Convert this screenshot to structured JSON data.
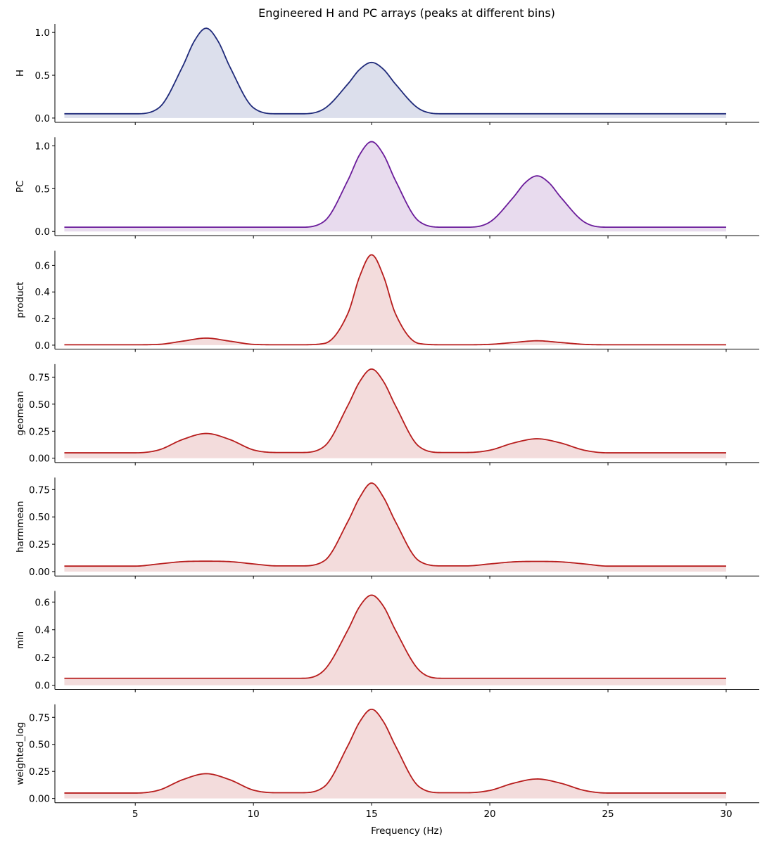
{
  "figure": {
    "title": "Engineered H and PC arrays (peaks at different bins)",
    "xlabel": "Frequency (Hz)"
  },
  "chart_data": [
    {
      "type": "area",
      "ylabel": "H",
      "color": "#1f2a7a",
      "fill": "#dcdfec",
      "xlim": [
        1.6,
        31.4
      ],
      "ylim": [
        -0.05,
        1.1
      ],
      "yticks": [
        0.0,
        0.5,
        1.0
      ],
      "ytick_labels": [
        "0.0",
        "0.5",
        "1.0"
      ],
      "x": [
        2,
        5,
        6,
        7,
        7.5,
        8,
        8.5,
        9,
        10,
        11,
        11.5,
        12,
        13,
        14,
        14.5,
        15,
        15.5,
        16,
        17,
        18,
        19,
        30
      ],
      "y": [
        0.05,
        0.05,
        0.12,
        0.6,
        0.9,
        1.05,
        0.9,
        0.6,
        0.12,
        0.05,
        0.05,
        0.05,
        0.11,
        0.4,
        0.57,
        0.65,
        0.57,
        0.4,
        0.11,
        0.05,
        0.05,
        0.05
      ]
    },
    {
      "type": "area",
      "ylabel": "PC",
      "color": "#6a1b9a",
      "fill": "#e8dbee",
      "xlim": [
        1.6,
        31.4
      ],
      "ylim": [
        -0.05,
        1.1
      ],
      "yticks": [
        0.0,
        0.5,
        1.0
      ],
      "ytick_labels": [
        "0.0",
        "0.5",
        "1.0"
      ],
      "x": [
        2,
        12,
        13,
        14,
        14.5,
        15,
        15.5,
        16,
        17,
        18,
        18.5,
        19,
        20,
        21,
        21.5,
        22,
        22.5,
        23,
        24,
        25,
        30
      ],
      "y": [
        0.05,
        0.05,
        0.12,
        0.6,
        0.9,
        1.05,
        0.9,
        0.6,
        0.12,
        0.05,
        0.05,
        0.05,
        0.11,
        0.4,
        0.57,
        0.65,
        0.57,
        0.4,
        0.11,
        0.05,
        0.05
      ]
    },
    {
      "type": "area",
      "ylabel": "product",
      "color": "#b71c1c",
      "fill": "#f3dcdc",
      "xlim": [
        1.6,
        31.4
      ],
      "ylim": [
        -0.03,
        0.71
      ],
      "yticks": [
        0.0,
        0.2,
        0.4,
        0.6
      ],
      "ytick_labels": [
        "0.0",
        "0.2",
        "0.4",
        "0.6"
      ],
      "x": [
        2,
        5,
        6,
        7,
        8,
        9,
        10,
        11,
        12,
        13,
        14,
        14.5,
        15,
        15.5,
        16,
        17,
        18,
        19,
        20,
        21,
        22,
        23,
        24,
        25,
        30
      ],
      "y": [
        0.003,
        0.003,
        0.006,
        0.03,
        0.053,
        0.03,
        0.006,
        0.003,
        0.003,
        0.013,
        0.24,
        0.52,
        0.68,
        0.52,
        0.24,
        0.013,
        0.003,
        0.003,
        0.006,
        0.02,
        0.033,
        0.02,
        0.006,
        0.003,
        0.003
      ]
    },
    {
      "type": "area",
      "ylabel": "geomean",
      "color": "#b71c1c",
      "fill": "#f3dcdc",
      "xlim": [
        1.6,
        31.4
      ],
      "ylim": [
        -0.04,
        0.87
      ],
      "yticks": [
        0.0,
        0.25,
        0.5,
        0.75
      ],
      "ytick_labels": [
        "0.00",
        "0.25",
        "0.50",
        "0.75"
      ],
      "x": [
        2,
        5,
        6,
        7,
        8,
        9,
        10,
        11,
        12,
        13,
        14,
        14.5,
        15,
        15.5,
        16,
        17,
        18,
        19,
        20,
        21,
        22,
        23,
        24,
        25,
        30
      ],
      "y": [
        0.05,
        0.05,
        0.077,
        0.173,
        0.229,
        0.173,
        0.077,
        0.053,
        0.053,
        0.11,
        0.49,
        0.71,
        0.825,
        0.71,
        0.49,
        0.11,
        0.053,
        0.053,
        0.074,
        0.141,
        0.18,
        0.141,
        0.074,
        0.05,
        0.05
      ]
    },
    {
      "type": "area",
      "ylabel": "harmmean",
      "color": "#b71c1c",
      "fill": "#f3dcdc",
      "xlim": [
        1.6,
        31.4
      ],
      "ylim": [
        -0.04,
        0.86
      ],
      "yticks": [
        0.0,
        0.25,
        0.5,
        0.75
      ],
      "ytick_labels": [
        "0.00",
        "0.25",
        "0.50",
        "0.75"
      ],
      "x": [
        2,
        5,
        6,
        7,
        8,
        9,
        10,
        11,
        12,
        13,
        14,
        14.5,
        15,
        15.5,
        16,
        17,
        18,
        19,
        20,
        21,
        22,
        23,
        24,
        25,
        30
      ],
      "y": [
        0.05,
        0.05,
        0.07,
        0.091,
        0.095,
        0.091,
        0.07,
        0.052,
        0.052,
        0.099,
        0.46,
        0.68,
        0.81,
        0.68,
        0.46,
        0.099,
        0.052,
        0.052,
        0.07,
        0.089,
        0.093,
        0.089,
        0.07,
        0.05,
        0.05
      ]
    },
    {
      "type": "area",
      "ylabel": "min",
      "color": "#b71c1c",
      "fill": "#f3dcdc",
      "xlim": [
        1.6,
        31.4
      ],
      "ylim": [
        -0.03,
        0.68
      ],
      "yticks": [
        0.0,
        0.2,
        0.4,
        0.6
      ],
      "ytick_labels": [
        "0.0",
        "0.2",
        "0.4",
        "0.6"
      ],
      "x": [
        2,
        12,
        13,
        14,
        14.5,
        15,
        15.5,
        16,
        17,
        18,
        30
      ],
      "y": [
        0.05,
        0.05,
        0.11,
        0.4,
        0.57,
        0.65,
        0.57,
        0.4,
        0.11,
        0.05,
        0.05
      ]
    },
    {
      "type": "area",
      "ylabel": "weighted_log",
      "color": "#b71c1c",
      "fill": "#f3dcdc",
      "xlim": [
        1.6,
        31.4
      ],
      "ylim": [
        -0.04,
        0.87
      ],
      "yticks": [
        0.0,
        0.25,
        0.5,
        0.75
      ],
      "ytick_labels": [
        "0.00",
        "0.25",
        "0.50",
        "0.75"
      ],
      "x": [
        2,
        5,
        6,
        7,
        8,
        9,
        10,
        11,
        12,
        13,
        14,
        14.5,
        15,
        15.5,
        16,
        17,
        18,
        19,
        20,
        21,
        22,
        23,
        24,
        25,
        30
      ],
      "y": [
        0.05,
        0.05,
        0.077,
        0.173,
        0.229,
        0.173,
        0.077,
        0.053,
        0.053,
        0.11,
        0.49,
        0.71,
        0.825,
        0.71,
        0.49,
        0.11,
        0.053,
        0.053,
        0.074,
        0.141,
        0.18,
        0.141,
        0.074,
        0.05,
        0.05
      ]
    }
  ],
  "xaxis": {
    "ticks": [
      5,
      10,
      15,
      20,
      25,
      30
    ],
    "tick_labels": [
      "5",
      "10",
      "15",
      "20",
      "25",
      "30"
    ]
  }
}
